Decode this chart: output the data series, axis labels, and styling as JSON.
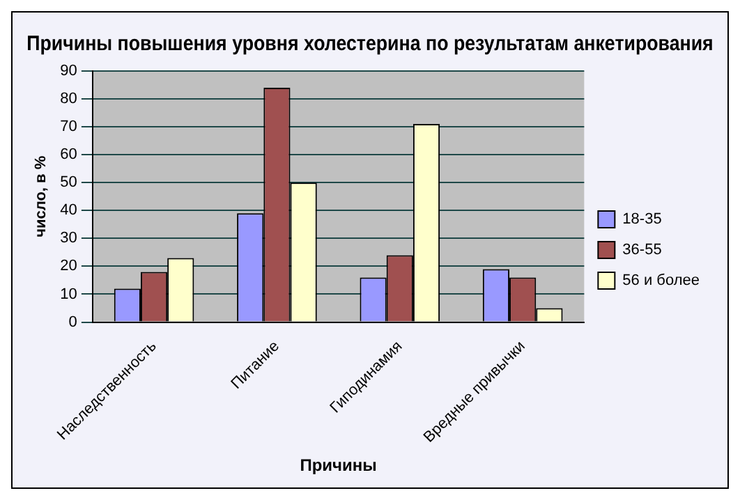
{
  "chart_data": {
    "type": "bar",
    "title": "Причины повышения уровня холестерина по результатам анкетирования",
    "xlabel": "Причины",
    "ylabel": "число, в %",
    "categories": [
      "Наследственность",
      "Питание",
      "Гиподинамия",
      "Вредные привычки"
    ],
    "series": [
      {
        "name": "18-35",
        "color": "#9999ff",
        "values": [
          12,
          39,
          16,
          19
        ]
      },
      {
        "name": "36-55",
        "color": "#a05050",
        "values": [
          18,
          84,
          24,
          16
        ]
      },
      {
        "name": "56 и более",
        "color": "#ffffcc",
        "values": [
          23,
          50,
          71,
          5
        ]
      }
    ],
    "ylim": [
      0,
      90
    ],
    "yticks": [
      0,
      10,
      20,
      30,
      40,
      50,
      60,
      70,
      80,
      90
    ],
    "grid": "y",
    "legend": "right"
  }
}
